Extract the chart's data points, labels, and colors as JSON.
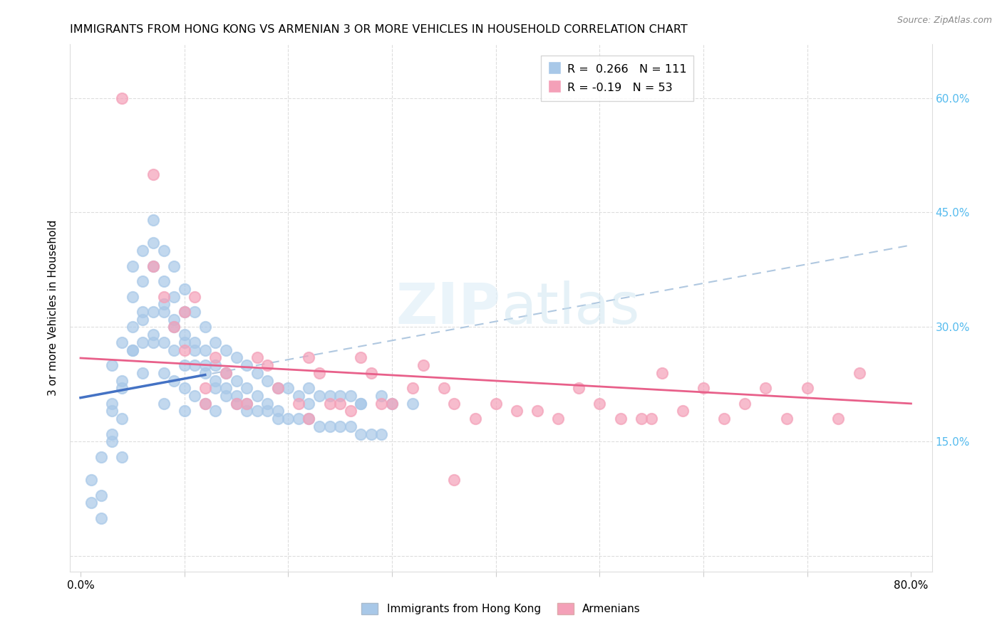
{
  "title": "IMMIGRANTS FROM HONG KONG VS ARMENIAN 3 OR MORE VEHICLES IN HOUSEHOLD CORRELATION CHART",
  "source": "Source: ZipAtlas.com",
  "ylabel": "3 or more Vehicles in Household",
  "xlim": [
    0.0,
    0.8
  ],
  "ylim": [
    -0.02,
    0.67
  ],
  "hk_R": 0.266,
  "hk_N": 111,
  "arm_R": -0.19,
  "arm_N": 53,
  "hk_color": "#a8c8e8",
  "arm_color": "#f4a0b8",
  "hk_line_color": "#4472c4",
  "arm_line_color": "#e8608a",
  "right_axis_color": "#55bbee",
  "legend_label_hk": "Immigrants from Hong Kong",
  "legend_label_arm": "Armenians",
  "yticks": [
    0.0,
    0.15,
    0.3,
    0.45,
    0.6
  ],
  "ytick_labels": [
    "",
    "15.0%",
    "30.0%",
    "45.0%",
    "60.0%"
  ],
  "hk_scatter_x": [
    0.02,
    0.02,
    0.03,
    0.03,
    0.03,
    0.04,
    0.04,
    0.04,
    0.04,
    0.05,
    0.05,
    0.05,
    0.05,
    0.06,
    0.06,
    0.06,
    0.06,
    0.06,
    0.07,
    0.07,
    0.07,
    0.07,
    0.07,
    0.08,
    0.08,
    0.08,
    0.08,
    0.08,
    0.08,
    0.09,
    0.09,
    0.09,
    0.09,
    0.09,
    0.1,
    0.1,
    0.1,
    0.1,
    0.1,
    0.1,
    0.11,
    0.11,
    0.11,
    0.11,
    0.12,
    0.12,
    0.12,
    0.12,
    0.13,
    0.13,
    0.13,
    0.13,
    0.14,
    0.14,
    0.14,
    0.15,
    0.15,
    0.15,
    0.16,
    0.16,
    0.16,
    0.17,
    0.17,
    0.18,
    0.18,
    0.19,
    0.19,
    0.2,
    0.21,
    0.22,
    0.22,
    0.23,
    0.24,
    0.25,
    0.26,
    0.27,
    0.27,
    0.29,
    0.3,
    0.32,
    0.01,
    0.01,
    0.02,
    0.03,
    0.03,
    0.04,
    0.05,
    0.06,
    0.07,
    0.08,
    0.09,
    0.1,
    0.11,
    0.12,
    0.13,
    0.14,
    0.15,
    0.16,
    0.17,
    0.18,
    0.19,
    0.2,
    0.21,
    0.22,
    0.23,
    0.24,
    0.25,
    0.26,
    0.27,
    0.28,
    0.29
  ],
  "hk_scatter_y": [
    0.08,
    0.05,
    0.25,
    0.2,
    0.15,
    0.28,
    0.22,
    0.18,
    0.13,
    0.38,
    0.34,
    0.3,
    0.27,
    0.4,
    0.36,
    0.32,
    0.28,
    0.24,
    0.44,
    0.41,
    0.38,
    0.32,
    0.28,
    0.4,
    0.36,
    0.32,
    0.28,
    0.24,
    0.2,
    0.38,
    0.34,
    0.3,
    0.27,
    0.23,
    0.35,
    0.32,
    0.28,
    0.25,
    0.22,
    0.19,
    0.32,
    0.28,
    0.25,
    0.21,
    0.3,
    0.27,
    0.24,
    0.2,
    0.28,
    0.25,
    0.22,
    0.19,
    0.27,
    0.24,
    0.21,
    0.26,
    0.23,
    0.2,
    0.25,
    0.22,
    0.19,
    0.24,
    0.21,
    0.23,
    0.2,
    0.22,
    0.19,
    0.22,
    0.21,
    0.22,
    0.2,
    0.21,
    0.21,
    0.21,
    0.21,
    0.2,
    0.2,
    0.21,
    0.2,
    0.2,
    0.1,
    0.07,
    0.13,
    0.19,
    0.16,
    0.23,
    0.27,
    0.31,
    0.29,
    0.33,
    0.31,
    0.29,
    0.27,
    0.25,
    0.23,
    0.22,
    0.21,
    0.2,
    0.19,
    0.19,
    0.18,
    0.18,
    0.18,
    0.18,
    0.17,
    0.17,
    0.17,
    0.17,
    0.16,
    0.16,
    0.16
  ],
  "arm_scatter_x": [
    0.04,
    0.07,
    0.07,
    0.08,
    0.09,
    0.1,
    0.1,
    0.11,
    0.12,
    0.12,
    0.13,
    0.14,
    0.15,
    0.16,
    0.17,
    0.18,
    0.19,
    0.21,
    0.22,
    0.23,
    0.24,
    0.25,
    0.26,
    0.27,
    0.28,
    0.29,
    0.3,
    0.32,
    0.33,
    0.35,
    0.36,
    0.38,
    0.4,
    0.42,
    0.44,
    0.46,
    0.48,
    0.5,
    0.52,
    0.54,
    0.56,
    0.58,
    0.6,
    0.62,
    0.64,
    0.66,
    0.68,
    0.7,
    0.73,
    0.75,
    0.55,
    0.36,
    0.22
  ],
  "arm_scatter_y": [
    0.6,
    0.5,
    0.38,
    0.34,
    0.3,
    0.27,
    0.32,
    0.34,
    0.2,
    0.22,
    0.26,
    0.24,
    0.2,
    0.2,
    0.26,
    0.25,
    0.22,
    0.2,
    0.26,
    0.24,
    0.2,
    0.2,
    0.19,
    0.26,
    0.24,
    0.2,
    0.2,
    0.22,
    0.25,
    0.22,
    0.2,
    0.18,
    0.2,
    0.19,
    0.19,
    0.18,
    0.22,
    0.2,
    0.18,
    0.18,
    0.24,
    0.19,
    0.22,
    0.18,
    0.2,
    0.22,
    0.18,
    0.22,
    0.18,
    0.24,
    0.18,
    0.1,
    0.18
  ]
}
